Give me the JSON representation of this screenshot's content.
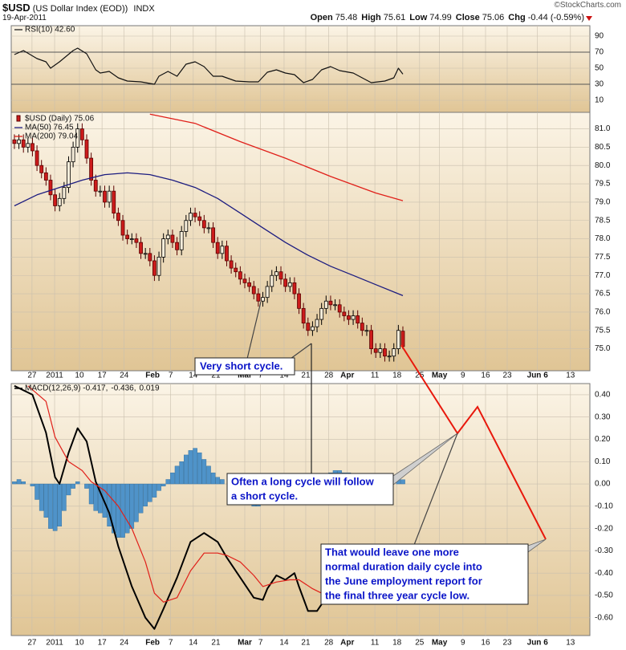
{
  "header": {
    "symbol": "$USD",
    "name": "(US Dollar Index (EOD))",
    "exchange": "INDX",
    "date": "19-Apr-2011",
    "source": "©StockCharts.com",
    "quote": [
      {
        "label": "Open",
        "value": 75.48
      },
      {
        "label": "High",
        "value": 75.61
      },
      {
        "label": "Low",
        "value": 74.99
      },
      {
        "label": "Close",
        "value": 75.06
      },
      {
        "label": "Chg",
        "value": "-0.44 (-0.59%)"
      }
    ]
  },
  "chart_data": [
    {
      "type": "line",
      "xlim": [
        -0.7,
        127.4
      ],
      "ylim": [
        -5,
        103
      ],
      "yticks": [
        90,
        70,
        50,
        30,
        10
      ],
      "reference_lines": [
        70,
        30
      ],
      "grid": true,
      "series": [
        {
          "name": "RSI(10) 42.60",
          "color": "#111111",
          "x": [
            0,
            2,
            5,
            7,
            8,
            10,
            13,
            14,
            16,
            18,
            19,
            21,
            23,
            25,
            28,
            31,
            32,
            34,
            36,
            38,
            40,
            42,
            44,
            46,
            49,
            52,
            54,
            56,
            58,
            60,
            62,
            64,
            66,
            68,
            70,
            72,
            74,
            75,
            77,
            79,
            82,
            84,
            85,
            86
          ],
          "values": [
            67,
            72,
            62,
            58,
            50,
            58,
            72,
            75,
            68,
            48,
            44,
            46,
            38,
            34,
            33,
            30,
            40,
            46,
            40,
            55,
            58,
            52,
            40,
            40,
            34,
            33,
            33,
            45,
            48,
            44,
            42,
            32,
            36,
            48,
            52,
            47,
            45,
            44,
            38,
            32,
            34,
            38,
            50,
            42.6
          ]
        }
      ]
    },
    {
      "type": "candlestick",
      "name": "$USD (Daily) 75.06",
      "up_color": "#000000",
      "down_color": "#cc1b1b",
      "xlim": [
        -0.7,
        127.4
      ],
      "ylim": [
        74.4,
        81.45
      ],
      "grid": true,
      "yticks": [
        {
          "value": 81,
          "label": "81.0"
        },
        80.5,
        {
          "value": 80,
          "label": "80.0"
        },
        79.5,
        {
          "value": 79,
          "label": "79.0"
        },
        78.5,
        {
          "value": 78,
          "label": "78.0"
        },
        77.5,
        {
          "value": 77,
          "label": "77.0"
        },
        76.5,
        {
          "value": 76,
          "label": "76.0"
        },
        75.5,
        {
          "value": 75,
          "label": "75.0"
        }
      ],
      "xticks": [
        {
          "value": 3.9,
          "label": "27"
        },
        {
          "value": 8.9,
          "label": "2011"
        },
        {
          "value": 14.4,
          "label": "10"
        },
        {
          "value": 19.4,
          "label": "17"
        },
        {
          "value": 24.3,
          "label": "24"
        },
        {
          "value": 30.6,
          "label": "Feb"
        },
        {
          "value": 34.6,
          "label": "7"
        },
        {
          "value": 39.6,
          "label": "14"
        },
        {
          "value": 44.6,
          "label": "21"
        },
        {
          "value": 51,
          "label": "Mar"
        },
        {
          "value": 54.5,
          "label": "7"
        },
        {
          "value": 59.7,
          "label": "14"
        },
        {
          "value": 64.5,
          "label": "21"
        },
        {
          "value": 69.6,
          "label": "28"
        },
        {
          "value": 73.7,
          "label": "Apr"
        },
        {
          "value": 79.8,
          "label": "11"
        },
        {
          "value": 84.7,
          "label": "18"
        },
        {
          "value": 89.7,
          "label": "25"
        },
        {
          "value": 94.1,
          "label": "May"
        },
        {
          "value": 99.3,
          "label": "9"
        },
        {
          "value": 104.3,
          "label": "16"
        },
        {
          "value": 109.1,
          "label": "23"
        },
        {
          "value": 115.8,
          "label": "Jun 6"
        },
        {
          "value": 123.1,
          "label": "13"
        }
      ],
      "open": [
        80.7,
        80.6,
        80.7,
        80.5,
        80.6,
        80.4,
        80.0,
        79.8,
        79.6,
        79.2,
        78.9,
        79.1,
        79.4,
        80.1,
        80.5,
        81.0,
        80.7,
        80.2,
        79.6,
        79.3,
        79.3,
        79.0,
        79.3,
        78.7,
        78.5,
        78.1,
        78.0,
        78.0,
        77.9,
        77.6,
        77.6,
        77.4,
        77.0,
        77.5,
        78.0,
        78.1,
        77.9,
        77.7,
        78.2,
        78.5,
        78.7,
        78.6,
        78.5,
        78.3,
        78.3,
        77.9,
        77.6,
        77.8,
        77.4,
        77.2,
        77.1,
        76.9,
        76.8,
        76.7,
        76.5,
        76.3,
        76.4,
        76.7,
        77.0,
        77.1,
        76.9,
        76.7,
        76.8,
        76.5,
        76.1,
        75.7,
        75.5,
        75.6,
        75.8,
        76.1,
        76.3,
        76.2,
        76.2,
        76.0,
        75.9,
        75.8,
        75.9,
        75.7,
        75.5,
        75.5,
        75.0,
        74.9,
        75.0,
        74.8,
        74.8,
        75.0,
        75.48
      ],
      "high": [
        80.85,
        80.85,
        80.85,
        80.75,
        80.75,
        80.55,
        80.15,
        79.95,
        79.75,
        79.35,
        79.25,
        79.55,
        80.25,
        80.65,
        81.15,
        81.15,
        80.85,
        80.35,
        79.75,
        79.45,
        79.45,
        79.45,
        79.45,
        78.85,
        78.65,
        78.25,
        78.15,
        78.15,
        78.05,
        77.75,
        77.75,
        77.55,
        77.65,
        78.15,
        78.25,
        78.25,
        78.05,
        78.35,
        78.65,
        78.85,
        78.85,
        78.75,
        78.65,
        78.45,
        78.45,
        78.05,
        77.95,
        77.95,
        77.55,
        77.35,
        77.25,
        77.05,
        76.95,
        76.85,
        76.65,
        76.55,
        76.85,
        77.15,
        77.25,
        77.25,
        77.05,
        76.95,
        76.95,
        76.65,
        76.25,
        75.85,
        75.75,
        75.95,
        76.25,
        76.45,
        76.45,
        76.35,
        76.35,
        76.15,
        76.05,
        76.05,
        76.05,
        75.85,
        75.65,
        75.65,
        75.15,
        75.15,
        75.15,
        74.95,
        75.15,
        75.65,
        75.61
      ],
      "low": [
        80.45,
        80.45,
        80.35,
        80.35,
        80.25,
        79.85,
        79.65,
        79.45,
        79.05,
        78.75,
        78.75,
        78.95,
        79.25,
        79.95,
        80.35,
        80.55,
        80.05,
        79.45,
        79.15,
        79.15,
        78.85,
        78.85,
        78.55,
        78.35,
        77.95,
        77.85,
        77.85,
        77.75,
        77.45,
        77.45,
        77.25,
        76.85,
        76.85,
        77.35,
        77.85,
        77.75,
        77.55,
        77.55,
        78.05,
        78.35,
        78.45,
        78.35,
        78.15,
        78.15,
        77.75,
        77.45,
        77.45,
        77.25,
        77.05,
        76.95,
        76.75,
        76.65,
        76.55,
        76.35,
        76.15,
        76.15,
        76.25,
        76.55,
        76.85,
        76.75,
        76.55,
        76.55,
        76.35,
        75.95,
        75.55,
        75.35,
        75.35,
        75.45,
        75.65,
        75.95,
        76.05,
        76.05,
        75.85,
        75.75,
        75.65,
        75.65,
        75.55,
        75.35,
        75.35,
        74.85,
        74.75,
        74.75,
        74.65,
        74.65,
        74.65,
        74.85,
        74.99
      ],
      "close": [
        80.6,
        80.7,
        80.5,
        80.6,
        80.4,
        80.0,
        79.8,
        79.6,
        79.2,
        78.9,
        79.1,
        79.4,
        80.1,
        80.5,
        81.0,
        80.7,
        80.2,
        79.6,
        79.3,
        79.3,
        79.0,
        79.3,
        78.7,
        78.5,
        78.1,
        78.0,
        78.0,
        77.9,
        77.6,
        77.6,
        77.4,
        77.0,
        77.5,
        78.0,
        78.1,
        77.9,
        77.7,
        78.2,
        78.5,
        78.7,
        78.6,
        78.5,
        78.3,
        78.3,
        77.9,
        77.6,
        77.8,
        77.4,
        77.2,
        77.1,
        76.9,
        76.8,
        76.7,
        76.5,
        76.3,
        76.4,
        76.7,
        77.0,
        77.1,
        76.9,
        76.7,
        76.8,
        76.5,
        76.1,
        75.7,
        75.5,
        75.6,
        75.8,
        76.1,
        76.3,
        76.2,
        76.2,
        76.0,
        75.9,
        75.8,
        75.9,
        75.7,
        75.5,
        75.5,
        75.0,
        74.9,
        75.0,
        74.8,
        74.8,
        75.0,
        75.5,
        75.06
      ],
      "overlays": [
        {
          "name": "MA(50) 76.45",
          "color": "#1c1c80",
          "x": [
            0,
            5,
            10,
            15,
            20,
            25,
            30,
            35,
            40,
            45,
            50,
            55,
            60,
            65,
            70,
            75,
            80,
            85,
            86
          ],
          "values": [
            78.9,
            79.2,
            79.4,
            79.6,
            79.75,
            79.8,
            79.75,
            79.6,
            79.4,
            79.1,
            78.7,
            78.3,
            77.9,
            77.55,
            77.25,
            77.0,
            76.75,
            76.5,
            76.45
          ]
        },
        {
          "name": "MA(200) 79.04",
          "color": "#e0201a",
          "x": [
            30,
            40,
            50,
            60,
            70,
            80,
            86
          ],
          "values": [
            81.4,
            81.15,
            80.65,
            80.2,
            79.7,
            79.25,
            79.04
          ]
        }
      ]
    },
    {
      "type": "macd",
      "xlim": [
        -0.7,
        127.4
      ],
      "ylim": [
        -0.68,
        0.45
      ],
      "grid": true,
      "yticks": [
        {
          "value": 0.4,
          "label": "0.40"
        },
        {
          "value": 0.3,
          "label": "0.30"
        },
        {
          "value": 0.2,
          "label": "0.20"
        },
        {
          "value": 0.1,
          "label": "0.10"
        },
        {
          "value": 0,
          "label": "0.00"
        },
        {
          "value": -0.1,
          "label": "-0.10"
        },
        {
          "value": -0.2,
          "label": "-0.20"
        },
        {
          "value": -0.3,
          "label": "-0.30"
        },
        {
          "value": -0.4,
          "label": "-0.40"
        },
        {
          "value": -0.5,
          "label": "-0.50"
        },
        {
          "value": -0.6,
          "label": "-0.60"
        }
      ],
      "xticks": [
        {
          "value": 3.9,
          "label": "27"
        },
        {
          "value": 8.9,
          "label": "2011"
        },
        {
          "value": 14.4,
          "label": "10"
        },
        {
          "value": 19.4,
          "label": "17"
        },
        {
          "value": 24.3,
          "label": "24"
        },
        {
          "value": 30.6,
          "label": "Feb"
        },
        {
          "value": 34.6,
          "label": "7"
        },
        {
          "value": 39.6,
          "label": "14"
        },
        {
          "value": 44.6,
          "label": "21"
        },
        {
          "value": 51,
          "label": "Mar"
        },
        {
          "value": 54.5,
          "label": "7"
        },
        {
          "value": 59.7,
          "label": "14"
        },
        {
          "value": 64.5,
          "label": "21"
        },
        {
          "value": 69.6,
          "label": "28"
        },
        {
          "value": 73.7,
          "label": "Apr"
        },
        {
          "value": 79.8,
          "label": "11"
        },
        {
          "value": 84.7,
          "label": "18"
        },
        {
          "value": 89.7,
          "label": "25"
        },
        {
          "value": 94.1,
          "label": "May"
        },
        {
          "value": 99.3,
          "label": "9"
        },
        {
          "value": 104.3,
          "label": "16"
        },
        {
          "value": 109.1,
          "label": "23"
        },
        {
          "value": 115.8,
          "label": "Jun 6"
        },
        {
          "value": 123.1,
          "label": "13"
        }
      ],
      "series": [
        {
          "name": "MACD(12,26,9) -0.417,",
          "color": "#000000",
          "kind": "line",
          "x": [
            0,
            4,
            7,
            9,
            10,
            12,
            14,
            16,
            18,
            21,
            23,
            26,
            29,
            31,
            33,
            36,
            39,
            42,
            45,
            47,
            50,
            53,
            55,
            56,
            58,
            60,
            62,
            63,
            65,
            67,
            69,
            74,
            80,
            86
          ],
          "values": [
            0.44,
            0.4,
            0.23,
            0.03,
            0.0,
            0.14,
            0.25,
            0.19,
            0.01,
            -0.13,
            -0.28,
            -0.46,
            -0.6,
            -0.65,
            -0.56,
            -0.42,
            -0.26,
            -0.22,
            -0.26,
            -0.33,
            -0.42,
            -0.51,
            -0.52,
            -0.47,
            -0.41,
            -0.43,
            -0.4,
            -0.46,
            -0.57,
            -0.57,
            -0.51,
            -0.48,
            -0.45,
            -0.417
          ]
        },
        {
          "name": "-0.436,",
          "color": "#e0201a",
          "kind": "line",
          "x": [
            3,
            7,
            9,
            12,
            15,
            17,
            20,
            23,
            26,
            29,
            31,
            33,
            36,
            39,
            42,
            45,
            47,
            50,
            53,
            55,
            58,
            61,
            63,
            66,
            68,
            75,
            80,
            86
          ],
          "values": [
            0.44,
            0.37,
            0.21,
            0.1,
            0.06,
            0.01,
            -0.03,
            -0.1,
            -0.2,
            -0.35,
            -0.49,
            -0.53,
            -0.51,
            -0.39,
            -0.31,
            -0.31,
            -0.32,
            -0.35,
            -0.41,
            -0.46,
            -0.44,
            -0.43,
            -0.43,
            -0.47,
            -0.49,
            -0.47,
            -0.45,
            -0.436
          ]
        },
        {
          "name": "0.019",
          "color": "#4f93c9",
          "kind": "bar",
          "values": [
            0.01,
            0.02,
            0.01,
            0.0,
            -0.01,
            -0.07,
            -0.12,
            -0.15,
            -0.2,
            -0.21,
            -0.19,
            -0.12,
            -0.05,
            -0.02,
            0.01,
            0.0,
            -0.02,
            -0.09,
            -0.12,
            -0.13,
            -0.15,
            -0.19,
            -0.22,
            -0.24,
            -0.24,
            -0.22,
            -0.2,
            -0.17,
            -0.13,
            -0.1,
            -0.08,
            -0.06,
            -0.03,
            -0.01,
            0.02,
            0.05,
            0.08,
            0.1,
            0.13,
            0.15,
            0.16,
            0.14,
            0.11,
            0.08,
            0.05,
            0.03,
            0.02,
            0.0,
            -0.01,
            -0.02,
            -0.03,
            -0.05,
            -0.08,
            -0.1,
            -0.1,
            -0.06,
            -0.03,
            0.0,
            0.01,
            0.02,
            0.01,
            0.0,
            -0.01,
            -0.02,
            -0.03,
            -0.02,
            0.0,
            0.01,
            0.03,
            0.04,
            0.05,
            0.06,
            0.06,
            0.05,
            0.05,
            0.04,
            0.03,
            0.03,
            0.02,
            0.0,
            -0.01,
            -0.02,
            -0.02,
            -0.01,
            0.0,
            0.02,
            0.019
          ]
        }
      ]
    }
  ],
  "annotations": {
    "short_cycle": "Very short cycle.",
    "long_cycle": [
      "Often a long cycle will follow",
      "a short cycle."
    ],
    "projection": [
      "That would leave one more",
      "normal duration daily cycle into",
      "the June employment report for",
      "the final three year cycle low."
    ]
  }
}
